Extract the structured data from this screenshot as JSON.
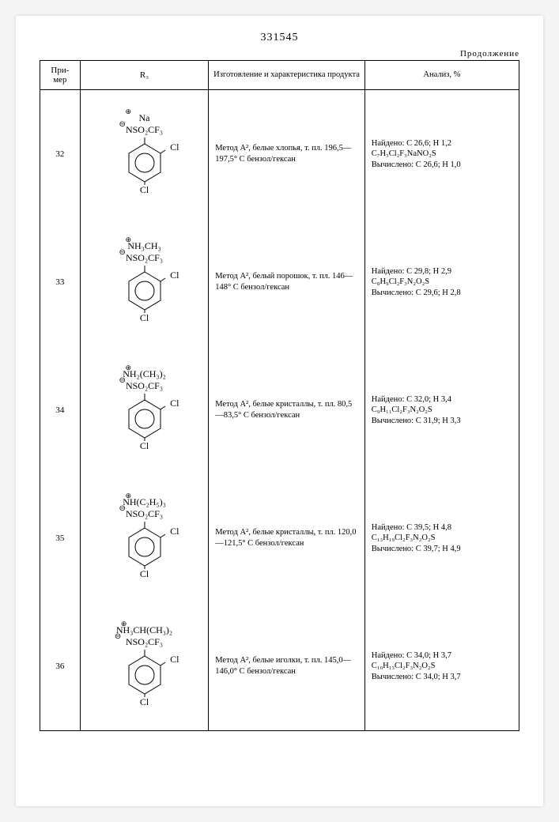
{
  "document_number": "331545",
  "continuation_label": "Продолжение",
  "headers": {
    "col_num": "При-\nмер",
    "col_r3": "R₃",
    "col_prep": "Изготовление и характеристика продукта",
    "col_anal": "Анализ, %"
  },
  "structure_common": {
    "n_line": "NSO₂CF₃",
    "cl_right": "Cl",
    "cl_bottom": "Cl"
  },
  "rows": [
    {
      "num": "32",
      "cation": "Na",
      "prep": "Метод A², белые хлопья, т. пл. 196,5—197,5° C бензол/гексан",
      "anal_found": "Найдено: C 26,6; H 1,2",
      "anal_formula": "C₇H₃Cl₂F₃NaNO₂S",
      "anal_calc": "Вычислено: C 26,6; H 1,0"
    },
    {
      "num": "33",
      "cation": "NH₃CH₃",
      "prep": "Метод A², белый порошок, т. пл. 146—148° C бензол/гексан",
      "anal_found": "Найдено: C 29,8; H 2,9",
      "anal_formula": "C₈H₉Cl₂F₃N₂O₂S",
      "anal_calc": "Вычислено: C 29,6; H 2,8"
    },
    {
      "num": "34",
      "cation": "NH₂(CH₃)₂",
      "prep": "Метод A², белые кристаллы, т. пл. 80,5—83,5° C бензол/гексан",
      "anal_found": "Найдено: C 32,0; H 3,4",
      "anal_formula": "C₉H₁₁Cl₂F₃N₂O₂S",
      "anal_calc": "Вычислено: C 31,9; H 3,3"
    },
    {
      "num": "35",
      "cation": "NH(C₂H₅)₃",
      "prep": "Метод A², белые кристаллы, т. пл. 120,0—121,5° C бензол/гексан",
      "anal_found": "Найдено: C 39,5; H 4,8",
      "anal_formula": "C₁₃H₁₉Cl₂F₃N₂O₂S",
      "anal_calc": "Вычислено: C 39,7; H 4,9"
    },
    {
      "num": "36",
      "cation": "NH₃CH(CH₃)₂",
      "prep": "Метод A², белые иголки, т. пл. 145,0—146,0° C бензол/гексан",
      "anal_found": "Найдено: C 34,0; H 3,7",
      "anal_formula": "C₁₀H₁₃Cl₂F₃N₂O₂S",
      "anal_calc": "Вычислено: C 34,0; H 3,7"
    }
  ],
  "colors": {
    "page_bg": "#ffffff",
    "text": "#000000",
    "border": "#000000"
  }
}
